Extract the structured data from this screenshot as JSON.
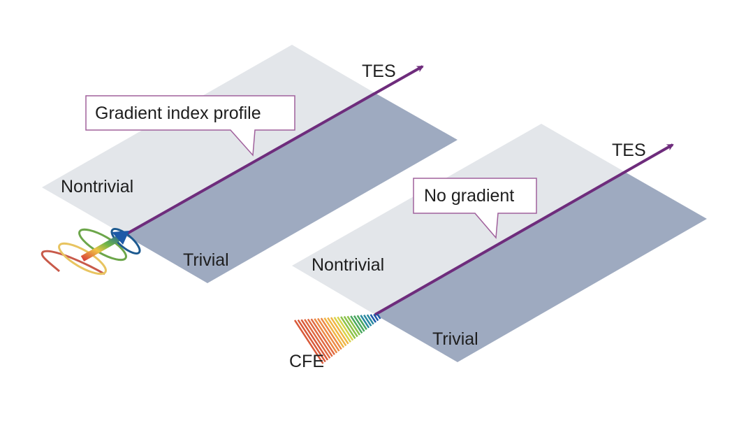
{
  "colors": {
    "nontrivial_region": "#e3e6ea",
    "trivial_region": "#9eaac0",
    "tes_arrow": "#6e2c7c",
    "callout_border": "#a0609c"
  },
  "panels": [
    {
      "tes_label": "TES",
      "callout": "Gradient index profile",
      "nontrivial_label": "Nontrivial",
      "trivial_label": "Trivial",
      "source_icon": "spiral-rainbow-arrow"
    },
    {
      "tes_label": "TES",
      "callout": "No gradient",
      "nontrivial_label": "Nontrivial",
      "trivial_label": "Trivial",
      "source_label": "CFE",
      "source_icon": "rainbow-fan"
    }
  ]
}
